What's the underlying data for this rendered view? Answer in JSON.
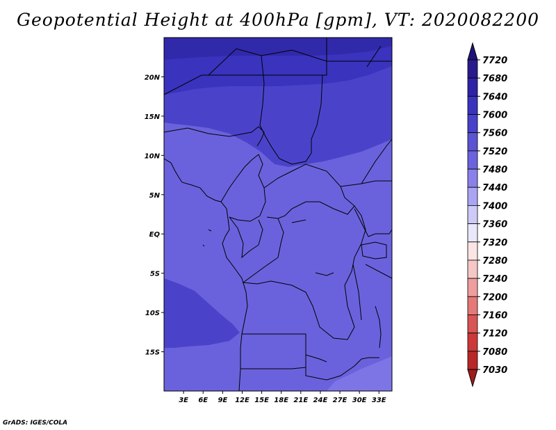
{
  "title": "Geopotential Height at 400hPa [gpm], VT: 2020082200",
  "credit": "GrADS: IGES/COLA",
  "map": {
    "lon_range": [
      0,
      35
    ],
    "lat_range": [
      -20,
      25
    ],
    "lat_ticks": [
      {
        "value": 20,
        "label": "20N"
      },
      {
        "value": 15,
        "label": "15N"
      },
      {
        "value": 10,
        "label": "10N"
      },
      {
        "value": 5,
        "label": "5N"
      },
      {
        "value": 0,
        "label": "EQ"
      },
      {
        "value": -5,
        "label": "5S"
      },
      {
        "value": -10,
        "label": "10S"
      },
      {
        "value": -15,
        "label": "15S"
      }
    ],
    "lon_ticks": [
      {
        "value": 3,
        "label": "3E"
      },
      {
        "value": 6,
        "label": "6E"
      },
      {
        "value": 9,
        "label": "9E"
      },
      {
        "value": 12,
        "label": "12E"
      },
      {
        "value": 15,
        "label": "15E"
      },
      {
        "value": 18,
        "label": "18E"
      },
      {
        "value": 21,
        "label": "21E"
      },
      {
        "value": 24,
        "label": "24E"
      },
      {
        "value": 27,
        "label": "27E"
      },
      {
        "value": 30,
        "label": "30E"
      },
      {
        "value": 33,
        "label": "33E"
      }
    ]
  },
  "legend": {
    "levels": [
      "7720",
      "7680",
      "7640",
      "7600",
      "7560",
      "7520",
      "7480",
      "7440",
      "7400",
      "7360",
      "7320",
      "7280",
      "7240",
      "7200",
      "7160",
      "7120",
      "7080",
      "7030"
    ],
    "colors": [
      "#281a8c",
      "#2e23a6",
      "#3a34bd",
      "#4742c9",
      "#5a54d2",
      "#6b63dd",
      "#8a80ea",
      "#aaa5f2",
      "#cdcaf8",
      "#e9e8fb",
      "#fbe4e4",
      "#f6c7c7",
      "#ef9d9d",
      "#e57878",
      "#d95454",
      "#cc3838",
      "#b82828",
      "#9e1e1e"
    ],
    "top_arrow_color": "#1e1478",
    "bottom_arrow_color": "#a01c1c"
  }
}
